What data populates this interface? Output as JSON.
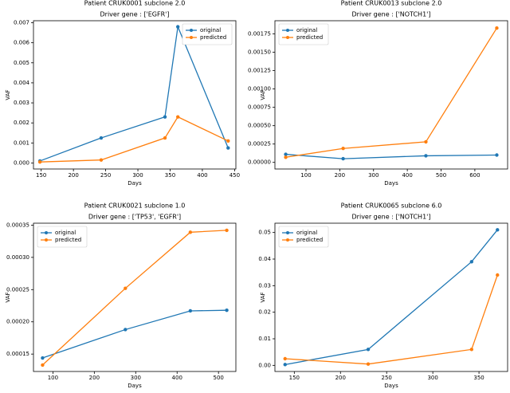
{
  "chart_data": [
    {
      "type": "line",
      "title": "Patient CRUK0001 subclone 2.0",
      "subtitle": "Driver gene : ['EGFR']",
      "x_label": "Days",
      "y_label": "VAF",
      "x": [
        148,
        243,
        342,
        362,
        440
      ],
      "series": [
        {
          "name": "original",
          "color": "#1f77b4",
          "values": [
            0.0001,
            0.00125,
            0.0023,
            0.0068,
            0.00075
          ]
        },
        {
          "name": "predicted",
          "color": "#ff7f0e",
          "values": [
            5e-05,
            0.00015,
            0.00125,
            0.0023,
            0.0011
          ]
        }
      ],
      "xlim": [
        138,
        452
      ],
      "xticks": [
        150,
        200,
        250,
        300,
        350,
        400,
        450
      ],
      "ylim": [
        -0.0003,
        0.0071
      ],
      "yticks": [
        {
          "value": 0,
          "label": "0.000"
        },
        {
          "value": 0.001,
          "label": "0.001"
        },
        {
          "value": 0.002,
          "label": "0.002"
        },
        {
          "value": 0.003,
          "label": "0.003"
        },
        {
          "value": 0.004,
          "label": "0.004"
        },
        {
          "value": 0.005,
          "label": "0.005"
        },
        {
          "value": 0.006,
          "label": "0.006"
        },
        {
          "value": 0.007,
          "label": "0.007"
        }
      ],
      "legend": "upper right"
    },
    {
      "type": "line",
      "title": "Patient CRUK0013 subclone 2.0",
      "subtitle": "Driver gene : ['NOTCH1']",
      "x_label": "Days",
      "y_label": "VAF",
      "x": [
        40,
        210,
        455,
        665
      ],
      "series": [
        {
          "name": "original",
          "color": "#1f77b4",
          "values": [
            0.00011,
            5e-05,
            9e-05,
            0.0001
          ]
        },
        {
          "name": "predicted",
          "color": "#ff7f0e",
          "values": [
            7e-05,
            0.00019,
            0.00028,
            0.00183
          ]
        }
      ],
      "xlim": [
        8,
        697
      ],
      "xticks": [
        100,
        200,
        300,
        400,
        500,
        600
      ],
      "ylim": [
        -9e-05,
        0.00193
      ],
      "yticks": [
        {
          "value": 0,
          "label": "0.00000"
        },
        {
          "value": 0.00025,
          "label": "0.00025"
        },
        {
          "value": 0.0005,
          "label": "0.00050"
        },
        {
          "value": 0.00075,
          "label": "0.00075"
        },
        {
          "value": 0.001,
          "label": "0.00100"
        },
        {
          "value": 0.00125,
          "label": "0.00125"
        },
        {
          "value": 0.0015,
          "label": "0.00150"
        },
        {
          "value": 0.00175,
          "label": "0.00175"
        }
      ],
      "legend": "upper left"
    },
    {
      "type": "line",
      "title": "Patient CRUK0021 subclone 1.0",
      "subtitle": "Driver gene : ['TP53', 'EGFR']",
      "x_label": "Days",
      "y_label": "VAF",
      "x": [
        75,
        275,
        432,
        520
      ],
      "series": [
        {
          "name": "original",
          "color": "#1f77b4",
          "values": [
            0.000144,
            0.000188,
            0.000217,
            0.000218
          ]
        },
        {
          "name": "predicted",
          "color": "#ff7f0e",
          "values": [
            0.000133,
            0.000252,
            0.000339,
            0.000342
          ]
        }
      ],
      "xlim": [
        53,
        542
      ],
      "xticks": [
        100,
        200,
        300,
        400,
        500
      ],
      "ylim": [
        0.000123,
        0.000353
      ],
      "yticks": [
        0.00015,
        {
          "value": 0.0002,
          "label": "0.00020"
        },
        0.00025,
        {
          "value": 0.0003,
          "label": "0.00030"
        },
        0.00035
      ],
      "legend": "upper left"
    },
    {
      "type": "line",
      "title": "Patient CRUK0065 subclone 6.0",
      "subtitle": "Driver gene : ['NOTCH1']",
      "x_label": "Days",
      "y_label": "VAF",
      "x": [
        140,
        230,
        342,
        370
      ],
      "series": [
        {
          "name": "original",
          "color": "#1f77b4",
          "values": [
            0.0003,
            0.006,
            0.039,
            0.051
          ]
        },
        {
          "name": "predicted",
          "color": "#ff7f0e",
          "values": [
            0.0025,
            0.0005,
            0.006,
            0.034
          ]
        }
      ],
      "xlim": [
        129,
        381
      ],
      "xticks": [
        150,
        200,
        250,
        300,
        350
      ],
      "ylim": [
        -0.0023,
        0.0535
      ],
      "yticks": [
        {
          "value": 0,
          "label": "0.00"
        },
        {
          "value": 0.01,
          "label": "0.01"
        },
        {
          "value": 0.02,
          "label": "0.02"
        },
        {
          "value": 0.03,
          "label": "0.03"
        },
        {
          "value": 0.04,
          "label": "0.04"
        },
        {
          "value": 0.05,
          "label": "0.05"
        }
      ],
      "legend": "upper left"
    }
  ]
}
